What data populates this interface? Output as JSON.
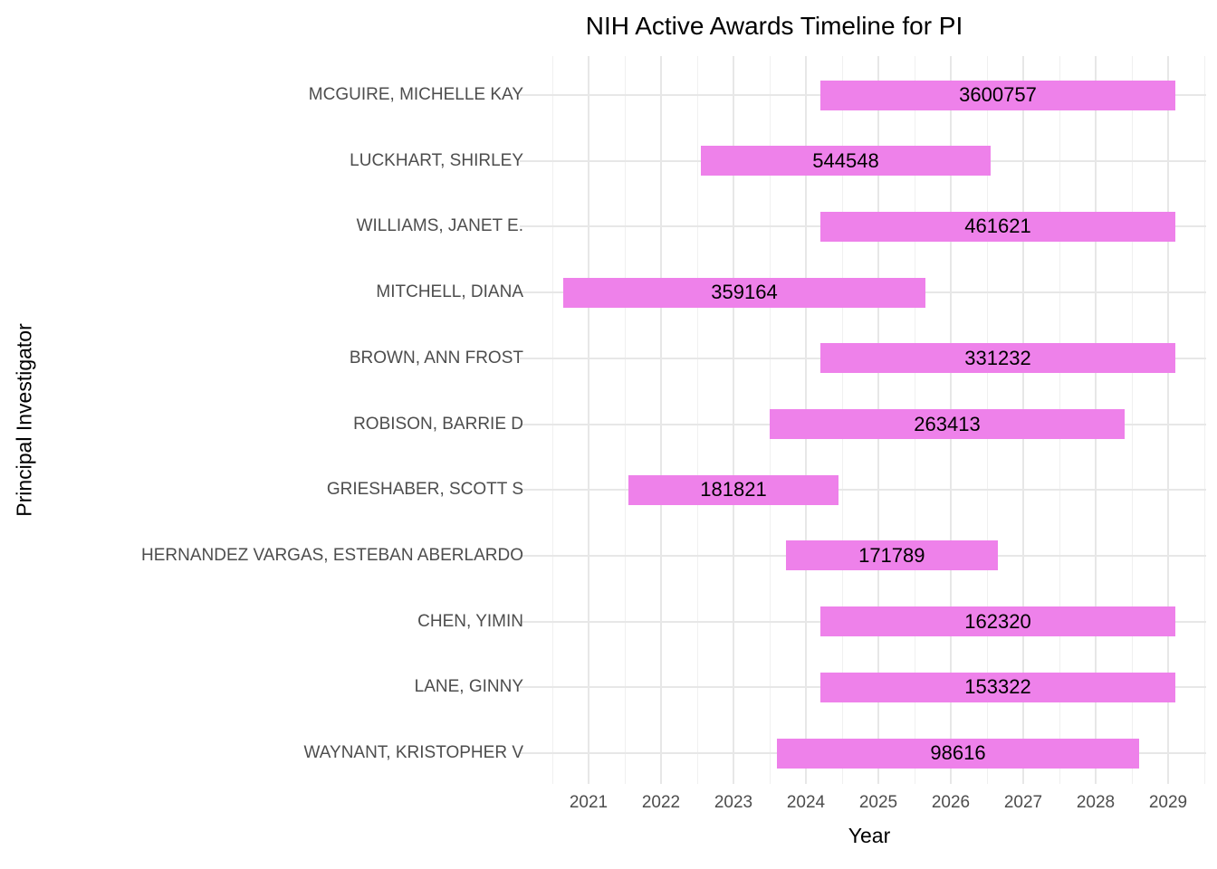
{
  "title": "NIH Active Awards Timeline for PI",
  "colors": {
    "bar_fill": "#ee81ea",
    "bar_label_text": "#000000",
    "axis_text": "#4d4d4d",
    "axis_title_text": "#000000",
    "grid_major": "#e7e7e7",
    "grid_minor": "#f0f0f0",
    "background": "#ffffff"
  },
  "chart_data": {
    "type": "bar",
    "subtype": "horizontal-range-timeline",
    "title": "NIH Active Awards Timeline for PI",
    "xlabel": "Year",
    "ylabel": "Principal Investigator",
    "xlim": [
      2020.225,
      2029.525
    ],
    "x_major_ticks": [
      2021,
      2022,
      2023,
      2024,
      2025,
      2026,
      2027,
      2028,
      2029
    ],
    "x_minor_ticks": [
      2020.5,
      2021.5,
      2022.5,
      2023.5,
      2024.5,
      2025.5,
      2026.5,
      2027.5,
      2028.5,
      2029.5
    ],
    "grid": true,
    "legend": false,
    "rows": [
      {
        "pi": "MCGUIRE, MICHELLE KAY",
        "award_total_label": "3600757",
        "start": 2024.2,
        "end": 2029.1
      },
      {
        "pi": "LUCKHART, SHIRLEY",
        "award_total_label": "544548",
        "start": 2022.55,
        "end": 2026.55
      },
      {
        "pi": "WILLIAMS, JANET E.",
        "award_total_label": "461621",
        "start": 2024.2,
        "end": 2029.1
      },
      {
        "pi": "MITCHELL, DIANA",
        "award_total_label": "359164",
        "start": 2020.65,
        "end": 2025.65
      },
      {
        "pi": "BROWN, ANN FROST",
        "award_total_label": "331232",
        "start": 2024.2,
        "end": 2029.1
      },
      {
        "pi": "ROBISON, BARRIE D",
        "award_total_label": "263413",
        "start": 2023.5,
        "end": 2028.4
      },
      {
        "pi": "GRIESHABER, SCOTT S",
        "award_total_label": "181821",
        "start": 2021.55,
        "end": 2024.45
      },
      {
        "pi": "HERNANDEZ VARGAS, ESTEBAN ABERLARDO",
        "award_total_label": "171789",
        "start": 2023.72,
        "end": 2026.65
      },
      {
        "pi": "CHEN, YIMIN",
        "award_total_label": "162320",
        "start": 2024.2,
        "end": 2029.1
      },
      {
        "pi": "LANE, GINNY",
        "award_total_label": "153322",
        "start": 2024.2,
        "end": 2029.1
      },
      {
        "pi": "WAYNANT, KRISTOPHER V",
        "award_total_label": "98616",
        "start": 2023.6,
        "end": 2028.6
      }
    ]
  }
}
